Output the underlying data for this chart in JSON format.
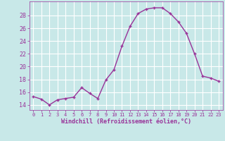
{
  "x": [
    0,
    1,
    2,
    3,
    4,
    5,
    6,
    7,
    8,
    9,
    10,
    11,
    12,
    13,
    14,
    15,
    16,
    17,
    18,
    19,
    20,
    21,
    22,
    23
  ],
  "y": [
    15.3,
    14.9,
    14.0,
    14.8,
    15.0,
    15.2,
    16.7,
    15.8,
    15.0,
    17.9,
    19.5,
    23.2,
    26.3,
    28.3,
    29.0,
    29.2,
    29.2,
    28.3,
    27.0,
    25.2,
    22.0,
    18.5,
    18.2,
    17.7
  ],
  "line_color": "#993399",
  "bg_color": "#c8e8e8",
  "grid_color": "#ffffff",
  "xlabel": "Windchill (Refroidissement éolien,°C)",
  "tick_color": "#993399",
  "yticks": [
    14,
    16,
    18,
    20,
    22,
    24,
    26,
    28
  ],
  "ylim": [
    13.2,
    30.2
  ],
  "xlim": [
    -0.5,
    23.5
  ],
  "font": "monospace"
}
